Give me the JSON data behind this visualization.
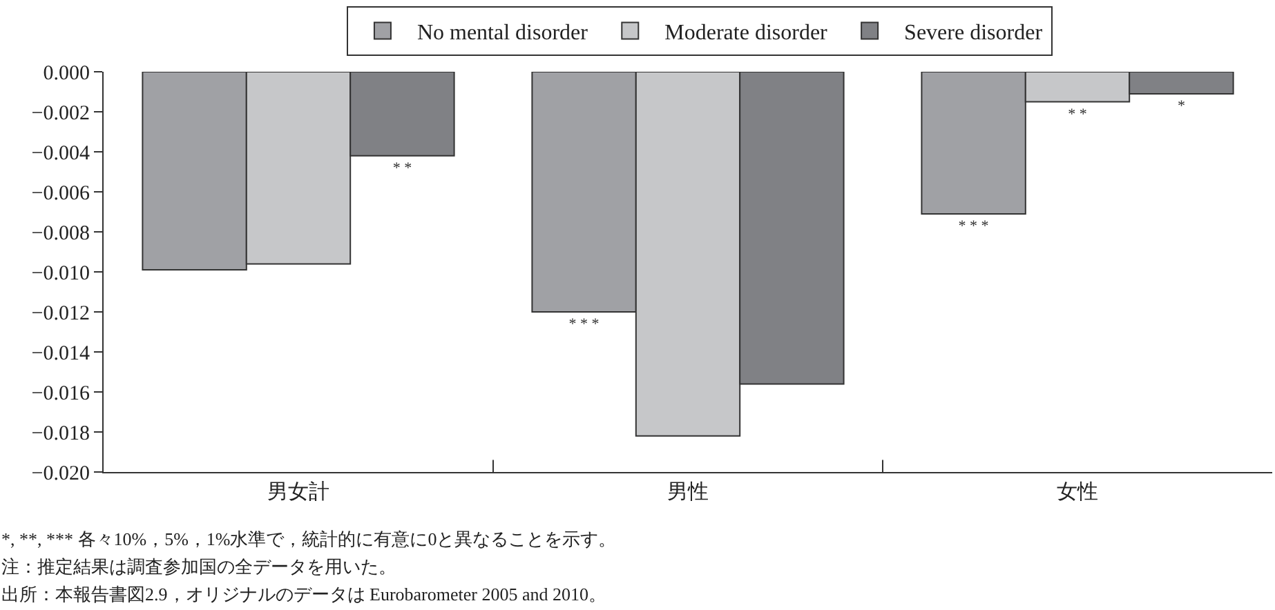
{
  "chart_data": {
    "type": "bar",
    "categories": [
      "男女計",
      "男性",
      "女性"
    ],
    "series": [
      {
        "name": "No mental disorder",
        "color": "#a0a1a5",
        "values": [
          -0.0099,
          -0.012,
          -0.0071
        ],
        "value_labels": [
          null,
          "* * *",
          "* * *"
        ]
      },
      {
        "name": "Moderate disorder",
        "color": "#c6c7c9",
        "values": [
          -0.0096,
          -0.0182,
          -0.0015
        ],
        "value_labels": [
          null,
          null,
          "* *"
        ]
      },
      {
        "name": "Severe disorder",
        "color": "#808185",
        "values": [
          -0.0042,
          -0.0156,
          -0.0011
        ],
        "value_labels": [
          "* *",
          null,
          "*"
        ]
      }
    ],
    "ylim": [
      -0.02,
      0.0
    ],
    "yticks": [
      {
        "value": 0,
        "label": "0.000"
      },
      {
        "value": -0.002,
        "label": "−0.002"
      },
      {
        "value": -0.004,
        "label": "−0.004"
      },
      {
        "value": -0.006,
        "label": "−0.006"
      },
      {
        "value": -0.008,
        "label": "−0.008"
      },
      {
        "value": -0.01,
        "label": "−0.010"
      },
      {
        "value": -0.012,
        "label": "−0.012"
      },
      {
        "value": -0.014,
        "label": "−0.014"
      },
      {
        "value": -0.016,
        "label": "−0.016"
      },
      {
        "value": -0.018,
        "label": "−0.018"
      },
      {
        "value": -0.02,
        "label": "−0.020"
      }
    ],
    "legend": "top",
    "annotations": [
      "*, **, *** 各々10%，5%，1%水準で，統計的に有意に0と異なることを示す。",
      "注：推定結果は調査参加国の全データを用いた。",
      "出所：本報告書図2.9，オリジナルのデータは Eurobarometer 2005 and 2010。"
    ]
  }
}
